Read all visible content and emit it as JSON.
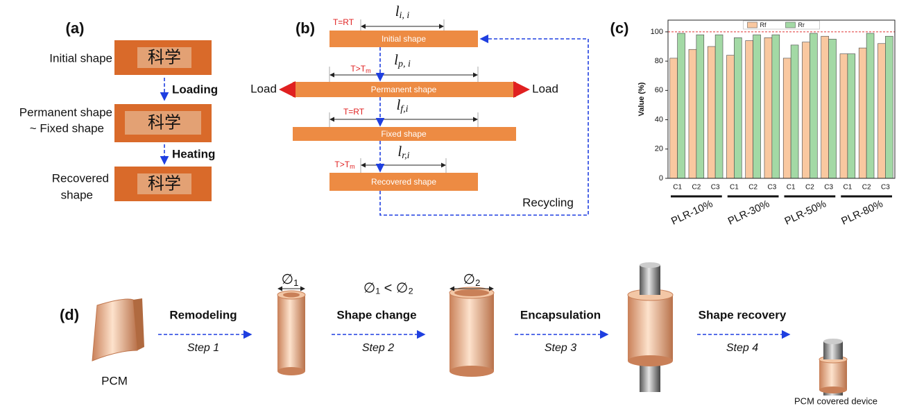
{
  "panel_a": {
    "label": "(a)",
    "initial": "Initial shape",
    "loading": "Loading",
    "permanent_lines": [
      "Permanent shape",
      "~ Fixed shape"
    ],
    "heating": "Heating",
    "recovered_lines": [
      "Recovered",
      "shape"
    ],
    "photo_text": "科学"
  },
  "panel_b": {
    "label": "(b)",
    "initial": {
      "temp": {
        "text": "T=RT"
      },
      "length": {
        "symbol": "l",
        "sub": "i, i"
      },
      "shape": "Initial shape"
    },
    "permanent": {
      "temp": {
        "text": "T>T",
        "sub": "m"
      },
      "length": {
        "symbol": "l",
        "sub": "p, i"
      },
      "shape": "Permanent shape",
      "load_left": "Load",
      "load_right": "Load"
    },
    "fixed": {
      "temp": {
        "text": "T=RT"
      },
      "length": {
        "symbol": "l",
        "sub": "f,i"
      },
      "shape": "Fixed shape"
    },
    "recovered": {
      "temp": {
        "text": "T>T",
        "sub": "m"
      },
      "length": {
        "symbol": "l",
        "sub": "r,i"
      },
      "shape": "Recovered shape"
    },
    "recycling": "Recycling"
  },
  "panel_c": {
    "label": "(c)"
  },
  "chart_data": {
    "type": "bar",
    "y_label": "Value (%)",
    "categories": [
      "C1",
      "C2",
      "C3",
      "C1",
      "C2",
      "C3",
      "C1",
      "C2",
      "C3",
      "C1",
      "C2",
      "C3"
    ],
    "groups": [
      "PLR-10%",
      "PLR-30%",
      "PLR-50%",
      "PLR-80%"
    ],
    "series": [
      {
        "name": "Rf",
        "color": "#f9c8a0",
        "values": [
          82,
          88,
          90,
          84,
          94,
          96,
          82,
          93,
          97,
          85,
          89,
          92
        ]
      },
      {
        "name": "Rr",
        "color": "#a3d9a5",
        "values": [
          99,
          98,
          98,
          96,
          98,
          98,
          91,
          99,
          95,
          85,
          99,
          97
        ]
      }
    ],
    "ylim": [
      0,
      108
    ],
    "yticks": [
      0,
      20,
      40,
      60,
      80,
      100
    ],
    "reference_line": {
      "value": 100,
      "color": "#e03030"
    },
    "legend": "top"
  },
  "panel_d": {
    "label": "(d)",
    "pcm": "PCM",
    "steps": [
      {
        "title": "Remodeling",
        "step": "Step 1"
      },
      {
        "title": "Shape change",
        "step": "Step 2"
      },
      {
        "title": "Encapsulation",
        "step": "Step 3"
      },
      {
        "title": "Shape recovery",
        "step": "Step 4"
      }
    ],
    "d1": {
      "symbol": "∅",
      "sub": "1"
    },
    "d2": {
      "symbol": "∅",
      "sub": "2"
    },
    "comparison": "∅₁ < ∅₂",
    "device": "PCM covered device"
  }
}
